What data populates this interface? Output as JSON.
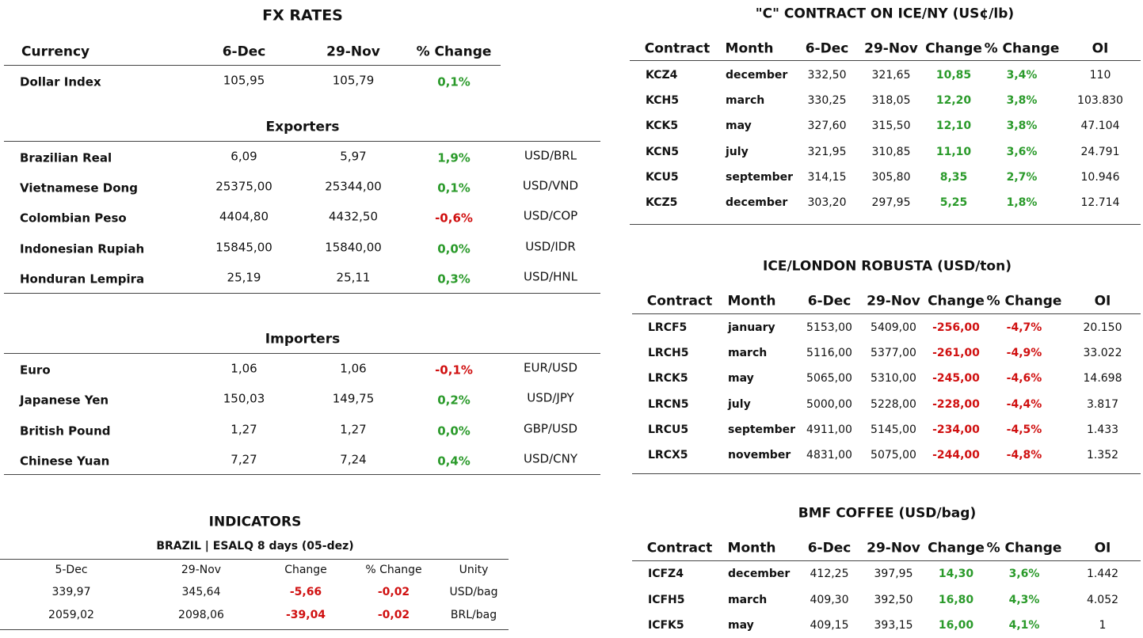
{
  "fx_rates": {
    "title": "FX RATES",
    "header": [
      "Currency",
      "6-Dec",
      "29-Nov",
      "% Change"
    ],
    "rows": [
      [
        "Dollar Index",
        "105,95",
        "105,79",
        "0,1%"
      ]
    ]
  },
  "exporters": {
    "title": "Exporters",
    "rows": [
      [
        "Brazilian Real",
        "6,09",
        "5,97",
        "1,9%",
        "USD/BRL"
      ],
      [
        "Vietnamese Dong",
        "25375,00",
        "25344,00",
        "0,1%",
        "USD/VND"
      ],
      [
        "Colombian Peso",
        "4404,80",
        "4432,50",
        "-0,6%",
        "USD/COP"
      ],
      [
        "Indonesian Rupiah",
        "15845,00",
        "15840,00",
        "0,0%",
        "USD/IDR"
      ],
      [
        "Honduran Lempira",
        "25,19",
        "25,11",
        "0,3%",
        "USD/HNL"
      ]
    ]
  },
  "importers": {
    "title": "Importers",
    "rows": [
      [
        "Euro",
        "1,06",
        "1,06",
        "-0,1%",
        "EUR/USD"
      ],
      [
        "Japanese Yen",
        "150,03",
        "149,75",
        "0,2%",
        "USD/JPY"
      ],
      [
        "British Pound",
        "1,27",
        "1,27",
        "0,0%",
        "GBP/USD"
      ],
      [
        "Chinese Yuan",
        "7,27",
        "7,24",
        "0,4%",
        "USD/CNY"
      ]
    ]
  },
  "indicators": {
    "title": "INDICATORS",
    "subtitle": "BRAZIL | ESALQ 8 days (05-dez)",
    "header": [
      "5-Dec",
      "29-Nov",
      "Change",
      "% Change",
      "Unity"
    ],
    "rows": [
      [
        "339,97",
        "345,64",
        "-5,66",
        "-0,02",
        "USD/bag"
      ],
      [
        "2059,02",
        "2098,06",
        "-39,04",
        "-0,02",
        "BRL/bag"
      ]
    ]
  },
  "c_contract": {
    "title": "\"C\" CONTRACT ON ICE/NY (US¢/lb)",
    "header": [
      "Contract",
      "Month",
      "6-Dec",
      "29-Nov",
      "Change",
      "% Change",
      "OI"
    ],
    "rows": [
      [
        "KCZ4",
        "december",
        "332,50",
        "321,65",
        "10,85",
        "3,4%",
        "110"
      ],
      [
        "KCH5",
        "march",
        "330,25",
        "318,05",
        "12,20",
        "3,8%",
        "103.830"
      ],
      [
        "KCK5",
        "may",
        "327,60",
        "315,50",
        "12,10",
        "3,8%",
        "47.104"
      ],
      [
        "KCN5",
        "july",
        "321,95",
        "310,85",
        "11,10",
        "3,6%",
        "24.791"
      ],
      [
        "KCU5",
        "september",
        "314,15",
        "305,80",
        "8,35",
        "2,7%",
        "10.946"
      ],
      [
        "KCZ5",
        "december",
        "303,20",
        "297,95",
        "5,25",
        "1,8%",
        "12.714"
      ]
    ]
  },
  "robusta": {
    "title": "ICE/LONDON ROBUSTA (USD/ton)",
    "header": [
      "Contract",
      "Month",
      "6-Dec",
      "29-Nov",
      "Change",
      "% Change",
      "OI"
    ],
    "rows": [
      [
        "LRCF5",
        "january",
        "5153,00",
        "5409,00",
        "-256,00",
        "-4,7%",
        "20.150"
      ],
      [
        "LRCH5",
        "march",
        "5116,00",
        "5377,00",
        "-261,00",
        "-4,9%",
        "33.022"
      ],
      [
        "LRCK5",
        "may",
        "5065,00",
        "5310,00",
        "-245,00",
        "-4,6%",
        "14.698"
      ],
      [
        "LRCN5",
        "july",
        "5000,00",
        "5228,00",
        "-228,00",
        "-4,4%",
        "3.817"
      ],
      [
        "LRCU5",
        "september",
        "4911,00",
        "5145,00",
        "-234,00",
        "-4,5%",
        "1.433"
      ],
      [
        "LRCX5",
        "november",
        "4831,00",
        "5075,00",
        "-244,00",
        "-4,8%",
        "1.352"
      ]
    ]
  },
  "bmf": {
    "title": "BMF COFFEE (USD/bag)",
    "header": [
      "Contract",
      "Month",
      "6-Dec",
      "29-Nov",
      "Change",
      "% Change",
      "OI"
    ],
    "rows": [
      [
        "ICFZ4",
        "december",
        "412,25",
        "397,95",
        "14,30",
        "3,6%",
        "1.442"
      ],
      [
        "ICFH5",
        "march",
        "409,30",
        "392,50",
        "16,80",
        "4,3%",
        "4.052"
      ],
      [
        "ICFK5",
        "may",
        "409,15",
        "393,15",
        "16,00",
        "4,1%",
        "1"
      ]
    ]
  }
}
